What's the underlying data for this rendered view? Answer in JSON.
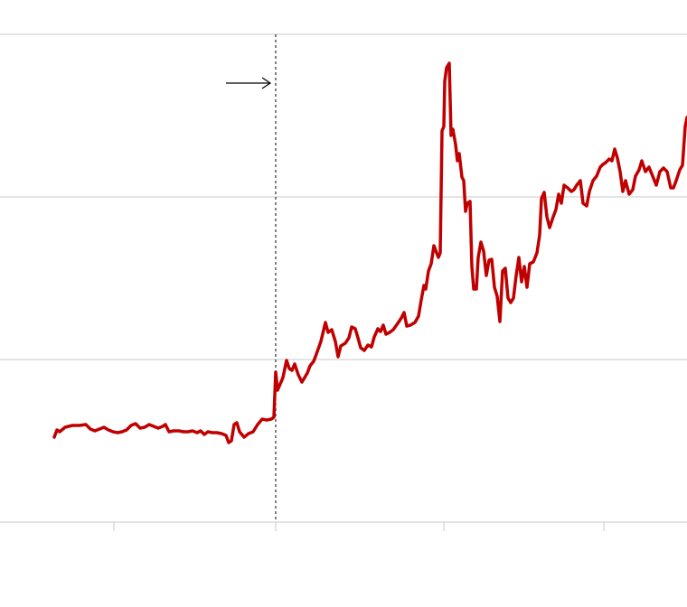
{
  "chart_data": {
    "type": "line",
    "x": [
      60,
      63,
      66,
      72,
      80,
      88,
      95,
      100,
      105,
      110,
      115,
      120,
      125,
      130,
      135,
      140,
      145,
      150,
      155,
      160,
      165,
      170,
      175,
      180,
      183,
      187,
      192,
      198,
      203,
      208,
      213,
      218,
      222,
      226,
      230,
      235,
      240,
      245,
      250,
      253,
      256,
      259,
      262,
      265,
      270,
      275,
      280,
      285,
      290,
      295,
      300,
      303,
      305,
      307,
      310,
      313,
      317,
      320,
      323,
      326,
      330,
      334,
      337,
      340,
      343,
      347,
      350,
      355,
      360,
      363,
      367,
      371,
      374,
      377,
      382,
      386,
      389,
      393,
      396,
      399,
      403,
      407,
      411,
      414,
      418,
      421,
      424,
      427,
      431,
      435,
      440,
      444,
      447,
      450,
      454,
      459,
      463,
      466,
      469,
      471,
      474,
      477,
      480,
      485,
      487,
      489,
      491,
      492,
      494,
      497,
      499,
      501,
      504,
      506,
      508,
      511,
      513,
      515,
      517,
      520,
      522,
      524,
      527,
      529,
      532,
      535,
      538,
      541,
      544,
      547,
      550,
      553,
      556,
      559,
      562,
      565,
      568,
      571,
      574,
      577,
      580,
      583,
      586,
      590,
      594,
      597,
      599,
      602,
      605,
      608,
      612,
      615,
      618,
      621,
      624,
      628,
      632,
      635,
      638,
      642,
      645,
      649,
      652,
      656,
      660,
      664,
      667,
      670,
      674,
      677,
      680,
      683,
      686,
      689,
      692,
      696,
      700,
      703,
      707,
      710,
      714,
      718,
      722,
      726,
      730,
      734,
      738,
      742,
      745,
      748,
      752,
      755,
      758,
      760
    ],
    "values": [
      94,
      102,
      100,
      105,
      107,
      107,
      108,
      103,
      101,
      103,
      105,
      102,
      100,
      99,
      100,
      102,
      107,
      109,
      104,
      105,
      108,
      106,
      104,
      106,
      108,
      100,
      101,
      101,
      100,
      100,
      101,
      99,
      101,
      97,
      100,
      99,
      99,
      98,
      96,
      88,
      90,
      108,
      110,
      100,
      94,
      98,
      100,
      108,
      114,
      113,
      114,
      116,
      166,
      146,
      153,
      160,
      179,
      170,
      168,
      175,
      163,
      155,
      160,
      165,
      173,
      178,
      186,
      200,
      221,
      210,
      213,
      200,
      183,
      195,
      198,
      204,
      216,
      214,
      204,
      193,
      190,
      196,
      194,
      205,
      214,
      211,
      218,
      208,
      210,
      213,
      220,
      226,
      232,
      217,
      218,
      221,
      228,
      246,
      262,
      258,
      278,
      286,
      306,
      293,
      298,
      433,
      438,
      488,
      503,
      508,
      428,
      435,
      418,
      400,
      408,
      382,
      378,
      344,
      353,
      355,
      283,
      258,
      258,
      293,
      310,
      300,
      273,
      290,
      291,
      260,
      250,
      222,
      278,
      281,
      248,
      243,
      248,
      273,
      293,
      266,
      283,
      260,
      286,
      288,
      298,
      318,
      358,
      365,
      338,
      326,
      338,
      346,
      363,
      353,
      373,
      370,
      366,
      368,
      373,
      378,
      353,
      350,
      366,
      378,
      383,
      393,
      396,
      398,
      402,
      400,
      413,
      403,
      388,
      366,
      378,
      363,
      368,
      383,
      390,
      400,
      388,
      393,
      383,
      373,
      388,
      392,
      388,
      370,
      370,
      378,
      390,
      395,
      438,
      448
    ],
    "color": "#c00000",
    "xlim": [
      0,
      760
    ],
    "xticks": [
      126,
      305,
      491,
      668
    ],
    "ylim": [
      0,
      540
    ],
    "yticks": [
      0,
      180,
      360,
      540
    ],
    "grid": true
  }
}
